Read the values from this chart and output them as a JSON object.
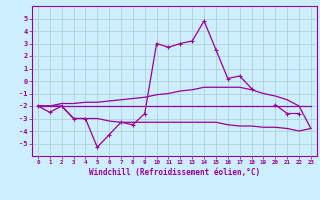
{
  "xlabel": "Windchill (Refroidissement éolien,°C)",
  "x": [
    0,
    1,
    2,
    3,
    4,
    5,
    6,
    7,
    8,
    9,
    10,
    11,
    12,
    13,
    14,
    15,
    16,
    17,
    18,
    19,
    20,
    21,
    22,
    23
  ],
  "line1": [
    -2.0,
    -2.5,
    -2.0,
    -3.0,
    -3.0,
    -5.3,
    -4.3,
    -3.3,
    -3.5,
    -2.6,
    3.0,
    2.7,
    3.0,
    3.2,
    4.8,
    2.5,
    0.2,
    0.4,
    -0.6,
    null,
    -1.9,
    -2.6,
    -2.6,
    null
  ],
  "line2": [
    -2.0,
    -2.0,
    -2.0,
    -2.0,
    -2.0,
    -2.0,
    -2.0,
    -2.0,
    -2.0,
    -2.0,
    -2.0,
    -2.0,
    -2.0,
    -2.0,
    -2.0,
    -2.0,
    -2.0,
    -2.0,
    -2.0,
    -2.0,
    -2.0,
    -2.0,
    -2.0,
    -2.0
  ],
  "line3": [
    -2.0,
    -2.0,
    -2.0,
    -3.0,
    -3.0,
    -3.0,
    -3.2,
    -3.3,
    -3.3,
    -3.3,
    -3.3,
    -3.3,
    -3.3,
    -3.3,
    -3.3,
    -3.3,
    -3.5,
    -3.6,
    -3.6,
    -3.7,
    -3.7,
    -3.8,
    -4.0,
    -3.8
  ],
  "line4": [
    -2.0,
    -2.0,
    -1.8,
    -1.8,
    -1.7,
    -1.7,
    -1.6,
    -1.5,
    -1.4,
    -1.3,
    -1.1,
    -1.0,
    -0.8,
    -0.7,
    -0.5,
    -0.5,
    -0.5,
    -0.5,
    -0.7,
    -1.0,
    -1.2,
    -1.5,
    -2.0,
    -3.8
  ],
  "line_color": "#990099",
  "bg_color": "#cceeff",
  "grid_color": "#aacccc",
  "ylim": [
    -6,
    6
  ],
  "xlim": [
    -0.5,
    23.5
  ],
  "yticks": [
    -5,
    -4,
    -3,
    -2,
    -1,
    0,
    1,
    2,
    3,
    4,
    5
  ],
  "xticks": [
    0,
    1,
    2,
    3,
    4,
    5,
    6,
    7,
    8,
    9,
    10,
    11,
    12,
    13,
    14,
    15,
    16,
    17,
    18,
    19,
    20,
    21,
    22,
    23
  ],
  "marker": "+"
}
